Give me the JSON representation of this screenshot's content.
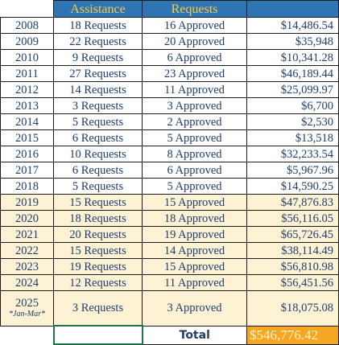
{
  "headers": {
    "assistance": "Assistance",
    "requests": "Requests"
  },
  "rows": [
    {
      "year": "2008",
      "requests": "18 Requests",
      "approved": "16 Approved",
      "amount": "$14,486.54"
    },
    {
      "year": "2009",
      "requests": "22 Requests",
      "approved": "20 Approved",
      "amount": "$35,948"
    },
    {
      "year": "2010",
      "requests": "9 Requests",
      "approved": "6 Approved",
      "amount": "$10,341.28"
    },
    {
      "year": "2011",
      "requests": "27 Requests",
      "approved": "23 Approved",
      "amount": "$46,189.44"
    },
    {
      "year": "2012",
      "requests": "14 Requests",
      "approved": "11 Approved",
      "amount": "$25,099.97"
    },
    {
      "year": "2013",
      "requests": "3 Requests",
      "approved": "3 Approved",
      "amount": "$6,700"
    },
    {
      "year": "2014",
      "requests": "5 Requests",
      "approved": "2 Approved",
      "amount": "$2,530"
    },
    {
      "year": "2015",
      "requests": "6 Requests",
      "approved": "5 Approved",
      "amount": "$13,518"
    },
    {
      "year": "2016",
      "requests": "10 Requests",
      "approved": "8 Approved",
      "amount": "$32,233.54"
    },
    {
      "year": "2017",
      "requests": "6 Requests",
      "approved": "6 Approved",
      "amount": "$5,967.96"
    },
    {
      "year": "2018",
      "requests": "5 Requests",
      "approved": "5 Approved",
      "amount": "$14,590.25"
    },
    {
      "year": "2019",
      "requests": "15 Requests",
      "approved": "15 Approved",
      "amount": "$47,876.83"
    },
    {
      "year": "2020",
      "requests": "18 Requests",
      "approved": "18 Approved",
      "amount": "$56,116.05"
    },
    {
      "year": "2021",
      "requests": "20 Requests",
      "approved": "19 Approved",
      "amount": "$65,726.45"
    },
    {
      "year": "2022",
      "requests": "15 Requests",
      "approved": "14 Approved",
      "amount": "$38,114.49"
    },
    {
      "year": "2023",
      "requests": "19 Requests",
      "approved": "15 Approved",
      "amount": "$56,810.98"
    },
    {
      "year": "2024",
      "requests": "12 Requests",
      "approved": "11 Approved",
      "amount": "$56,451.56"
    }
  ],
  "last_row": {
    "year": "2025",
    "note": "*Jan-Mar*",
    "requests": "3 Requests",
    "approved": "3 Approved",
    "amount": "$18,075.08"
  },
  "total": {
    "label": "Total",
    "amount": "$546,776.42"
  },
  "colors": {
    "header_bg": "#2e75b6",
    "header_text": "#f7c948",
    "text": "#1f3d6e",
    "recent_row_bg": "#fdf2d4",
    "total_bg": "#f5a623",
    "selection_border": "#217346"
  }
}
